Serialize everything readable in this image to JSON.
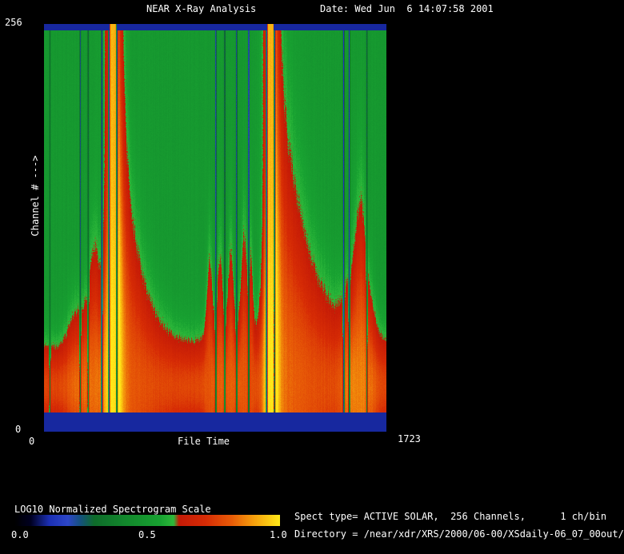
{
  "header": {
    "title": "NEAR X-Ray Analysis",
    "date_label": "Date: Wed Jun  6 14:07:58 2001"
  },
  "axes": {
    "y_max": "256",
    "y_min": "0",
    "y_label": "Channel # --->",
    "x_min": "0",
    "x_label": "File Time",
    "x_max": "1723"
  },
  "legend": {
    "title": "LOG10 Normalized Spectrogram Scale",
    "tick_left": "0.0",
    "tick_mid": "0.5",
    "tick_right": "1.0"
  },
  "info": {
    "line1": "Spect type= ACTIVE SOLAR,  256 Channels,      1 ch/bin",
    "line2": "Directory = /near/xdr/XRS/2000/06-00/XSdaily-06_07_00out/"
  },
  "chart_data": {
    "type": "heatmap",
    "title": "NEAR X-Ray Analysis",
    "xlabel": "File Time",
    "ylabel": "Channel # --->",
    "x_range": [
      0,
      1723
    ],
    "y_range": [
      0,
      256
    ],
    "colorbar": {
      "title": "LOG10 Normalized Spectrogram Scale",
      "ticks": [
        0.0,
        0.5,
        1.0
      ]
    },
    "colormap": [
      [
        0.0,
        "#000000"
      ],
      [
        0.06,
        "#000020"
      ],
      [
        0.13,
        "#1b2fb4"
      ],
      [
        0.2,
        "#2c46c8"
      ],
      [
        0.25,
        "#14527a"
      ],
      [
        0.3,
        "#0e6b2a"
      ],
      [
        0.42,
        "#12882c"
      ],
      [
        0.55,
        "#18a231"
      ],
      [
        0.6,
        "#2db83a"
      ],
      [
        0.62,
        "#c41a06"
      ],
      [
        0.72,
        "#d62b05"
      ],
      [
        0.82,
        "#e85c07"
      ],
      [
        0.9,
        "#f59d0c"
      ],
      [
        1.0,
        "#ffe818"
      ]
    ],
    "model": {
      "background": 0.5,
      "band": {
        "center": 28,
        "sigma": 27,
        "amp": 0.27
      },
      "strips": {
        "bottom": 12,
        "top": 252,
        "value": 0.12
      },
      "flares": [
        {
          "t": 348,
          "width": 36,
          "tail": 185,
          "decay": 90,
          "halo": 0.3,
          "pre": 150,
          "pre_scale": 20
        },
        {
          "t": 1141,
          "width": 32,
          "tail": 195,
          "decay": 150,
          "halo": 0.34,
          "pre": 150,
          "pre_scale": 20
        }
      ],
      "enhancements": [
        {
          "t0": 110,
          "t1": 325,
          "sigma": 46,
          "amp": 0.07
        },
        {
          "t0": 800,
          "t1": 1055,
          "sigma": 40,
          "amp": 0.05
        },
        {
          "t0": 1495,
          "t1": 1675,
          "sigma": 46,
          "amp": 0.09
        }
      ],
      "spikes": [
        {
          "t": 250,
          "sigma": 34,
          "width": 30
        },
        {
          "t": 833,
          "sigma": 42,
          "width": 16
        },
        {
          "t": 886,
          "sigma": 38,
          "width": 16
        },
        {
          "t": 940,
          "sigma": 42,
          "width": 16
        },
        {
          "t": 1007,
          "sigma": 55,
          "width": 18
        },
        {
          "t": 1040,
          "sigma": 50,
          "width": 14
        },
        {
          "t": 1595,
          "sigma": 50,
          "width": 35
        }
      ],
      "gaps": [
        {
          "t": 28,
          "depth": 0.35
        },
        {
          "t": 181,
          "depth": 0.5
        },
        {
          "t": 221,
          "depth": 0.45
        },
        {
          "t": 290,
          "depth": 0.75
        },
        {
          "t": 326,
          "depth": 0.8
        },
        {
          "t": 366,
          "depth": 0.8
        },
        {
          "t": 865,
          "depth": 0.65
        },
        {
          "t": 910,
          "depth": 0.55
        },
        {
          "t": 970,
          "depth": 0.6
        },
        {
          "t": 1031,
          "depth": 0.7
        },
        {
          "t": 1121,
          "depth": 0.8
        },
        {
          "t": 1161,
          "depth": 0.8
        },
        {
          "t": 1510,
          "depth": 0.75
        },
        {
          "t": 1538,
          "depth": 0.65
        },
        {
          "t": 1627,
          "depth": 0.45
        }
      ]
    }
  }
}
